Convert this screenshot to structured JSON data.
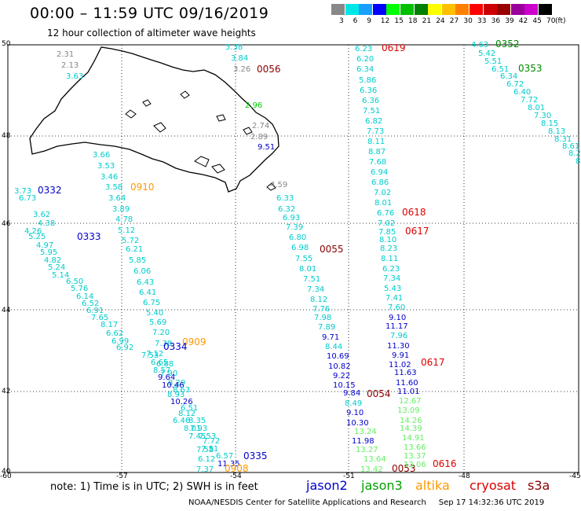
{
  "header": {
    "title": "00:00 – 11:59 UTC 09/16/2019",
    "subtitle": "12 hour collection of altimeter wave heights"
  },
  "legend": {
    "labels": [
      "3",
      "6",
      "9",
      "12",
      "15",
      "18",
      "21",
      "24",
      "27",
      "30",
      "33",
      "36",
      "39",
      "42",
      "45",
      "70"
    ],
    "colors": [
      "#888888",
      "#00e6e6",
      "#19a0ff",
      "#0000ff",
      "#00ff00",
      "#00c000",
      "#008000",
      "#ffff00",
      "#ffc000",
      "#ff8000",
      "#ff0000",
      "#cc0000",
      "#990000",
      "#990099",
      "#cc00cc",
      "#000000"
    ],
    "unit": "(ft)"
  },
  "axes": {
    "lat_labels": [
      "50",
      "48",
      "46",
      "44",
      "42",
      "40"
    ],
    "lon_labels": [
      "-60",
      "-57",
      "-54",
      "-51",
      "-48",
      "-45"
    ]
  },
  "footer": {
    "note": "note:  1) Time is in UTC;  2) SWH is in feet",
    "satellites": [
      {
        "name": "jason2",
        "color": "#0000cc"
      },
      {
        "name": "jason3",
        "color": "#00a000"
      },
      {
        "name": "altika",
        "color": "#ff9900"
      },
      {
        "name": "cryosat",
        "color": "#dd0000"
      },
      {
        "name": "s3a",
        "color": "#880000"
      }
    ],
    "credit": "NOAA/NESDIS Center for Satellite Applications and Research     Sep 17 14:32:36 UTC 2019"
  },
  "passes": [
    {
      "text": "2.31",
      "c": "#888888"
    },
    {
      "text": "2.13",
      "c": "#888888"
    },
    {
      "text": "3.63",
      "c": "#00cccc"
    },
    {
      "text": "3.38",
      "c": "#00cccc"
    },
    {
      "text": "3.84",
      "c": "#00cccc"
    },
    {
      "text": "3.26",
      "c": "#888888"
    },
    {
      "text": "0056",
      "c": "#880000"
    },
    {
      "text": "2.96",
      "c": "#00cc00"
    },
    {
      "text": "2.74",
      "c": "#888888"
    },
    {
      "text": "2.89",
      "c": "#888888"
    },
    {
      "text": "9.51",
      "c": "#0000cc"
    },
    {
      "text": "3.66",
      "c": "#00cccc"
    },
    {
      "text": "3.53",
      "c": "#00cccc"
    },
    {
      "text": "3.46",
      "c": "#00cccc"
    },
    {
      "text": "3.58",
      "c": "#00cccc"
    },
    {
      "text": "0910",
      "c": "#ff9900"
    },
    {
      "text": "3.64",
      "c": "#00cccc"
    },
    {
      "text": "3.89",
      "c": "#00cccc"
    },
    {
      "text": "4.78",
      "c": "#00cccc"
    },
    {
      "text": "5.12",
      "c": "#00cccc"
    },
    {
      "text": "5.72",
      "c": "#00cccc"
    },
    {
      "text": "6.21",
      "c": "#00cccc"
    },
    {
      "text": "5.85",
      "c": "#00cccc"
    },
    {
      "text": "6.06",
      "c": "#00cccc"
    },
    {
      "text": "6.43",
      "c": "#00cccc"
    },
    {
      "text": "6.41",
      "c": "#00cccc"
    },
    {
      "text": "6.75",
      "c": "#00cccc"
    },
    {
      "text": "5.40",
      "c": "#00cccc"
    },
    {
      "text": "5.69",
      "c": "#00cccc"
    },
    {
      "text": "7.20",
      "c": "#00cccc"
    },
    {
      "text": "7.38",
      "c": "#00cccc"
    },
    {
      "text": "0909",
      "c": "#ff9900"
    },
    {
      "text": "3.73",
      "c": "#00cccc"
    },
    {
      "text": "6.73",
      "c": "#00cccc"
    },
    {
      "text": "0332",
      "c": "#0000cc"
    },
    {
      "text": "3.62",
      "c": "#00cccc"
    },
    {
      "text": "4.38",
      "c": "#00cccc"
    },
    {
      "text": "4.26",
      "c": "#00cccc"
    },
    {
      "text": "5.25",
      "c": "#00cccc"
    },
    {
      "text": "0333",
      "c": "#0000cc"
    },
    {
      "text": "4.97",
      "c": "#00cccc"
    },
    {
      "text": "5.95",
      "c": "#00cccc"
    },
    {
      "text": "4.82",
      "c": "#00cccc"
    },
    {
      "text": "5.24",
      "c": "#00cccc"
    },
    {
      "text": "5.14",
      "c": "#00cccc"
    },
    {
      "text": "6.50",
      "c": "#00cccc"
    },
    {
      "text": "5.76",
      "c": "#00cccc"
    },
    {
      "text": "6.14",
      "c": "#00cccc"
    },
    {
      "text": "6.52",
      "c": "#00cccc"
    },
    {
      "text": "6.91",
      "c": "#00cccc"
    },
    {
      "text": "7.65",
      "c": "#00cccc"
    },
    {
      "text": "8.17",
      "c": "#00cccc"
    },
    {
      "text": "6.62",
      "c": "#00cccc"
    },
    {
      "text": "6.99",
      "c": "#00cccc"
    },
    {
      "text": "6.92",
      "c": "#00cccc"
    },
    {
      "text": "0334",
      "c": "#0000cc"
    },
    {
      "text": "7.12",
      "c": "#00cccc"
    },
    {
      "text": "7.53",
      "c": "#00cccc"
    },
    {
      "text": "6.65",
      "c": "#00cccc"
    },
    {
      "text": "6.88",
      "c": "#00cccc"
    },
    {
      "text": "8.57",
      "c": "#00cccc"
    },
    {
      "text": "7.90",
      "c": "#00cccc"
    },
    {
      "text": "9.64",
      "c": "#0000cc"
    },
    {
      "text": "8.29",
      "c": "#00cccc"
    },
    {
      "text": "10.46",
      "c": "#0000cc"
    },
    {
      "text": "8.63",
      "c": "#00cccc"
    },
    {
      "text": "8.93",
      "c": "#00cccc"
    },
    {
      "text": "10.26",
      "c": "#0000cc"
    },
    {
      "text": "6.51",
      "c": "#00cccc"
    },
    {
      "text": "8.12",
      "c": "#00cccc"
    },
    {
      "text": "6.46",
      "c": "#00cccc"
    },
    {
      "text": "8.35",
      "c": "#00cccc"
    },
    {
      "text": "8.01",
      "c": "#00cccc"
    },
    {
      "text": "7.93",
      "c": "#00cccc"
    },
    {
      "text": "7.45",
      "c": "#00cccc"
    },
    {
      "text": "7.53",
      "c": "#00cccc"
    },
    {
      "text": "7.72",
      "c": "#00cccc"
    },
    {
      "text": "7.58",
      "c": "#00cccc"
    },
    {
      "text": "7.51",
      "c": "#00cccc"
    },
    {
      "text": "6.12",
      "c": "#00cccc"
    },
    {
      "text": "6.57",
      "c": "#00cccc"
    },
    {
      "text": "0335",
      "c": "#0000cc"
    },
    {
      "text": "11.35",
      "c": "#0000cc"
    },
    {
      "text": "7.37",
      "c": "#00cccc"
    },
    {
      "text": "0908",
      "c": "#ff9900"
    },
    {
      "text": "4.59",
      "c": "#888888"
    },
    {
      "text": "6.33",
      "c": "#00cccc"
    },
    {
      "text": "6.32",
      "c": "#00cccc"
    },
    {
      "text": "6.93",
      "c": "#00cccc"
    },
    {
      "text": "7.39",
      "c": "#00cccc"
    },
    {
      "text": "6.80",
      "c": "#00cccc"
    },
    {
      "text": "6.98",
      "c": "#00cccc"
    },
    {
      "text": "0055",
      "c": "#880000"
    },
    {
      "text": "7.55",
      "c": "#00cccc"
    },
    {
      "text": "8.01",
      "c": "#00cccc"
    },
    {
      "text": "7.51",
      "c": "#00cccc"
    },
    {
      "text": "7.34",
      "c": "#00cccc"
    },
    {
      "text": "8.12",
      "c": "#00cccc"
    },
    {
      "text": "7.76",
      "c": "#00cccc"
    },
    {
      "text": "7.98",
      "c": "#00cccc"
    },
    {
      "text": "7.89",
      "c": "#00cccc"
    },
    {
      "text": "9.71",
      "c": "#0000cc"
    },
    {
      "text": "8.44",
      "c": "#00cccc"
    },
    {
      "text": "10.69",
      "c": "#0000cc"
    },
    {
      "text": "10.82",
      "c": "#0000cc"
    },
    {
      "text": "9.22",
      "c": "#0000cc"
    },
    {
      "text": "10.15",
      "c": "#0000cc"
    },
    {
      "text": "9.84",
      "c": "#0000cc"
    },
    {
      "text": "0054",
      "c": "#880000"
    },
    {
      "text": "8.49",
      "c": "#00cccc"
    },
    {
      "text": "9.10",
      "c": "#0000cc"
    },
    {
      "text": "10.30",
      "c": "#0000cc"
    },
    {
      "text": "13.24",
      "c": "#66ee66"
    },
    {
      "text": "11.98",
      "c": "#0000cc"
    },
    {
      "text": "13.27",
      "c": "#66ee66"
    },
    {
      "text": "13.64",
      "c": "#66ee66"
    },
    {
      "text": "13.42",
      "c": "#66ee66"
    },
    {
      "text": "0053",
      "c": "#880000"
    },
    {
      "text": "6.23",
      "c": "#00cccc"
    },
    {
      "text": "0619",
      "c": "#dd0000"
    },
    {
      "text": "6.20",
      "c": "#00cccc"
    },
    {
      "text": "6.34",
      "c": "#00cccc"
    },
    {
      "text": "5.86",
      "c": "#00cccc"
    },
    {
      "text": "6.36",
      "c": "#00cccc"
    },
    {
      "text": "6.36",
      "c": "#00cccc"
    },
    {
      "text": "7.51",
      "c": "#00cccc"
    },
    {
      "text": "6.82",
      "c": "#00cccc"
    },
    {
      "text": "7.73",
      "c": "#00cccc"
    },
    {
      "text": "8.11",
      "c": "#00cccc"
    },
    {
      "text": "8.87",
      "c": "#00cccc"
    },
    {
      "text": "7.68",
      "c": "#00cccc"
    },
    {
      "text": "6.94",
      "c": "#00cccc"
    },
    {
      "text": "6.86",
      "c": "#00cccc"
    },
    {
      "text": "7.02",
      "c": "#00cccc"
    },
    {
      "text": "8.01",
      "c": "#00cccc"
    },
    {
      "text": "6.76",
      "c": "#00cccc"
    },
    {
      "text": "0618",
      "c": "#dd0000"
    },
    {
      "text": "7.02",
      "c": "#00cccc"
    },
    {
      "text": "7.85",
      "c": "#00cccc"
    },
    {
      "text": "0617",
      "c": "#dd0000"
    },
    {
      "text": "8.10",
      "c": "#00cccc"
    },
    {
      "text": "8.23",
      "c": "#00cccc"
    },
    {
      "text": "8.11",
      "c": "#00cccc"
    },
    {
      "text": "6.23",
      "c": "#00cccc"
    },
    {
      "text": "7.34",
      "c": "#00cccc"
    },
    {
      "text": "5.43",
      "c": "#00cccc"
    },
    {
      "text": "7.41",
      "c": "#00cccc"
    },
    {
      "text": "7.60",
      "c": "#00cccc"
    },
    {
      "text": "9.10",
      "c": "#0000cc"
    },
    {
      "text": "11.17",
      "c": "#0000cc"
    },
    {
      "text": "7.96",
      "c": "#00cccc"
    },
    {
      "text": "11.30",
      "c": "#0000cc"
    },
    {
      "text": "9.91",
      "c": "#0000cc"
    },
    {
      "text": "11.02",
      "c": "#0000cc"
    },
    {
      "text": "0617",
      "c": "#dd0000"
    },
    {
      "text": "11.63",
      "c": "#0000cc"
    },
    {
      "text": "11.60",
      "c": "#0000cc"
    },
    {
      "text": "11.01",
      "c": "#0000cc"
    },
    {
      "text": "12.67",
      "c": "#66ee66"
    },
    {
      "text": "13.09",
      "c": "#66ee66"
    },
    {
      "text": "14.26",
      "c": "#66ee66"
    },
    {
      "text": "14.39",
      "c": "#66ee66"
    },
    {
      "text": "14.91",
      "c": "#66ee66"
    },
    {
      "text": "13.66",
      "c": "#66ee66"
    },
    {
      "text": "13.37",
      "c": "#66ee66"
    },
    {
      "text": "13.06",
      "c": "#66ee66"
    },
    {
      "text": "0616",
      "c": "#dd0000"
    },
    {
      "text": "4.63",
      "c": "#00cccc"
    },
    {
      "text": "0352",
      "c": "#008800"
    },
    {
      "text": "5.42",
      "c": "#00cccc"
    },
    {
      "text": "5.51",
      "c": "#00cccc"
    },
    {
      "text": "6.51",
      "c": "#00cccc"
    },
    {
      "text": "0353",
      "c": "#008800"
    },
    {
      "text": "6.34",
      "c": "#00cccc"
    },
    {
      "text": "6.72",
      "c": "#00cccc"
    },
    {
      "text": "6.40",
      "c": "#00cccc"
    },
    {
      "text": "7.72",
      "c": "#00cccc"
    },
    {
      "text": "8.01",
      "c": "#00cccc"
    },
    {
      "text": "7.30",
      "c": "#00cccc"
    },
    {
      "text": "8.15",
      "c": "#00cccc"
    },
    {
      "text": "8.13",
      "c": "#00cccc"
    },
    {
      "text": "8.31",
      "c": "#00cccc"
    },
    {
      "text": "8.61",
      "c": "#00cccc"
    },
    {
      "text": "8.2",
      "c": "#00cccc"
    },
    {
      "text": "8",
      "c": "#00cccc"
    }
  ]
}
